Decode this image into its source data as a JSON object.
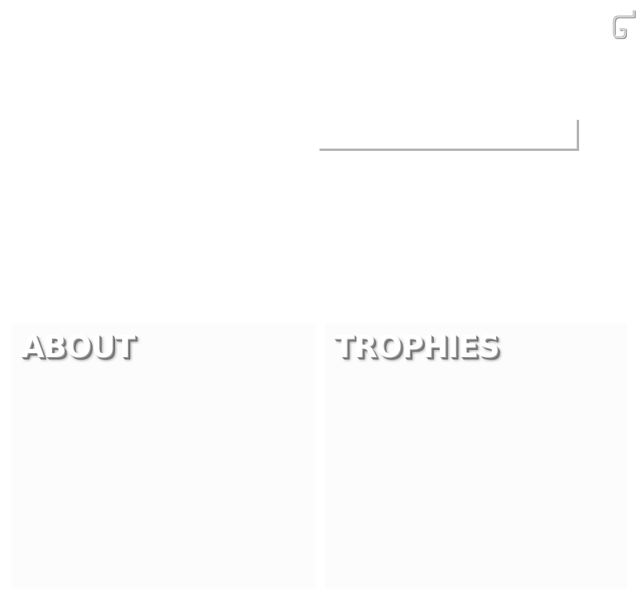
{
  "header": {
    "corner_icon": "return-arrow-icon"
  },
  "name_field": {
    "value": "",
    "placeholder": ""
  },
  "panels": {
    "about": {
      "title": "ABOUT",
      "body": ""
    },
    "trophies": {
      "title": "TROPHIES",
      "body": ""
    }
  },
  "colors": {
    "background": "#ffffff",
    "panel_background": "#fcfcfc",
    "title_text": "#ffffff",
    "title_shadow": "#6a6a6a",
    "input_bevel": "#b4b4b4"
  }
}
